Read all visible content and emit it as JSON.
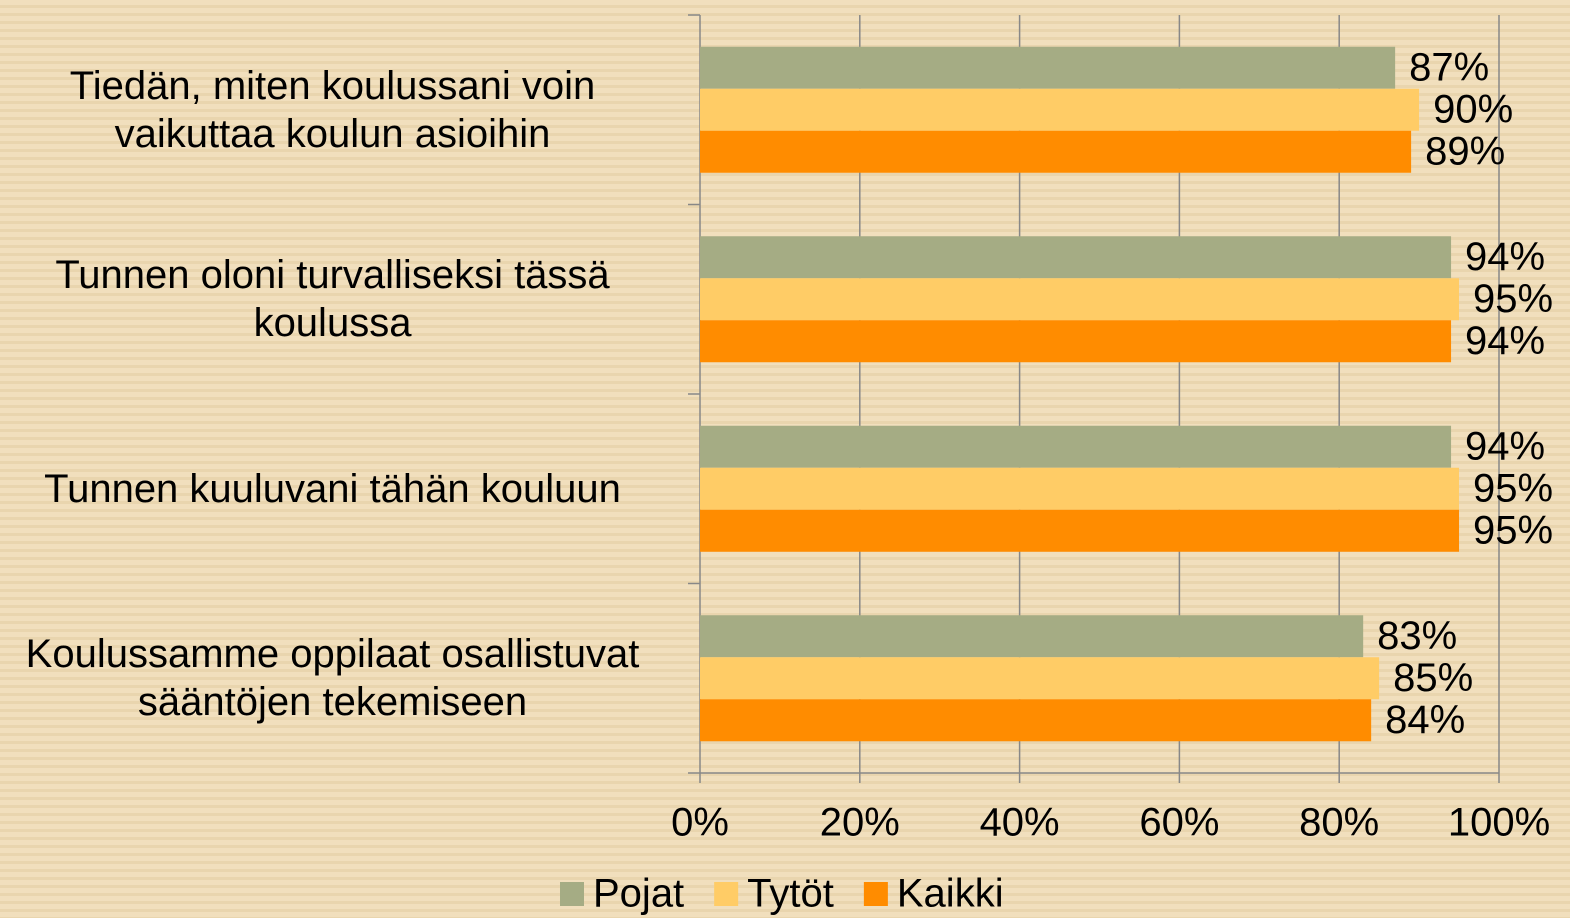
{
  "chart_data": {
    "type": "hbar",
    "categories": [
      "Tiedän, miten koulussani voin vaikuttaa koulun asioihin",
      "Tunnen oloni turvalliseksi tässä koulussa",
      "Tunnen kuuluvani tähän kouluun",
      "Koulussamme oppilaat osallistuvat sääntöjen tekemiseen"
    ],
    "series": [
      {
        "name": "Pojat",
        "color": "#a5ac84",
        "values": [
          87,
          94,
          94,
          83
        ],
        "value_labels": [
          "87%",
          "94%",
          "94%",
          "83%"
        ]
      },
      {
        "name": "Tytöt",
        "color": "#ffcc66",
        "values": [
          90,
          95,
          95,
          85
        ],
        "value_labels": [
          "90%",
          "95%",
          "95%",
          "85%"
        ]
      },
      {
        "name": "Kaikki",
        "color": "#ff8c00",
        "values": [
          89,
          94,
          95,
          84
        ],
        "value_labels": [
          "89%",
          "94%",
          "95%",
          "84%"
        ]
      }
    ],
    "xlim": [
      0,
      100
    ],
    "xticks": [
      {
        "value": 0,
        "label": "0%"
      },
      {
        "value": 20,
        "label": "20%"
      },
      {
        "value": 40,
        "label": "40%"
      },
      {
        "value": 60,
        "label": "60%"
      },
      {
        "value": 80,
        "label": "80%"
      },
      {
        "value": 100,
        "label": "100%"
      }
    ],
    "grid": true,
    "legend": "bottom"
  }
}
